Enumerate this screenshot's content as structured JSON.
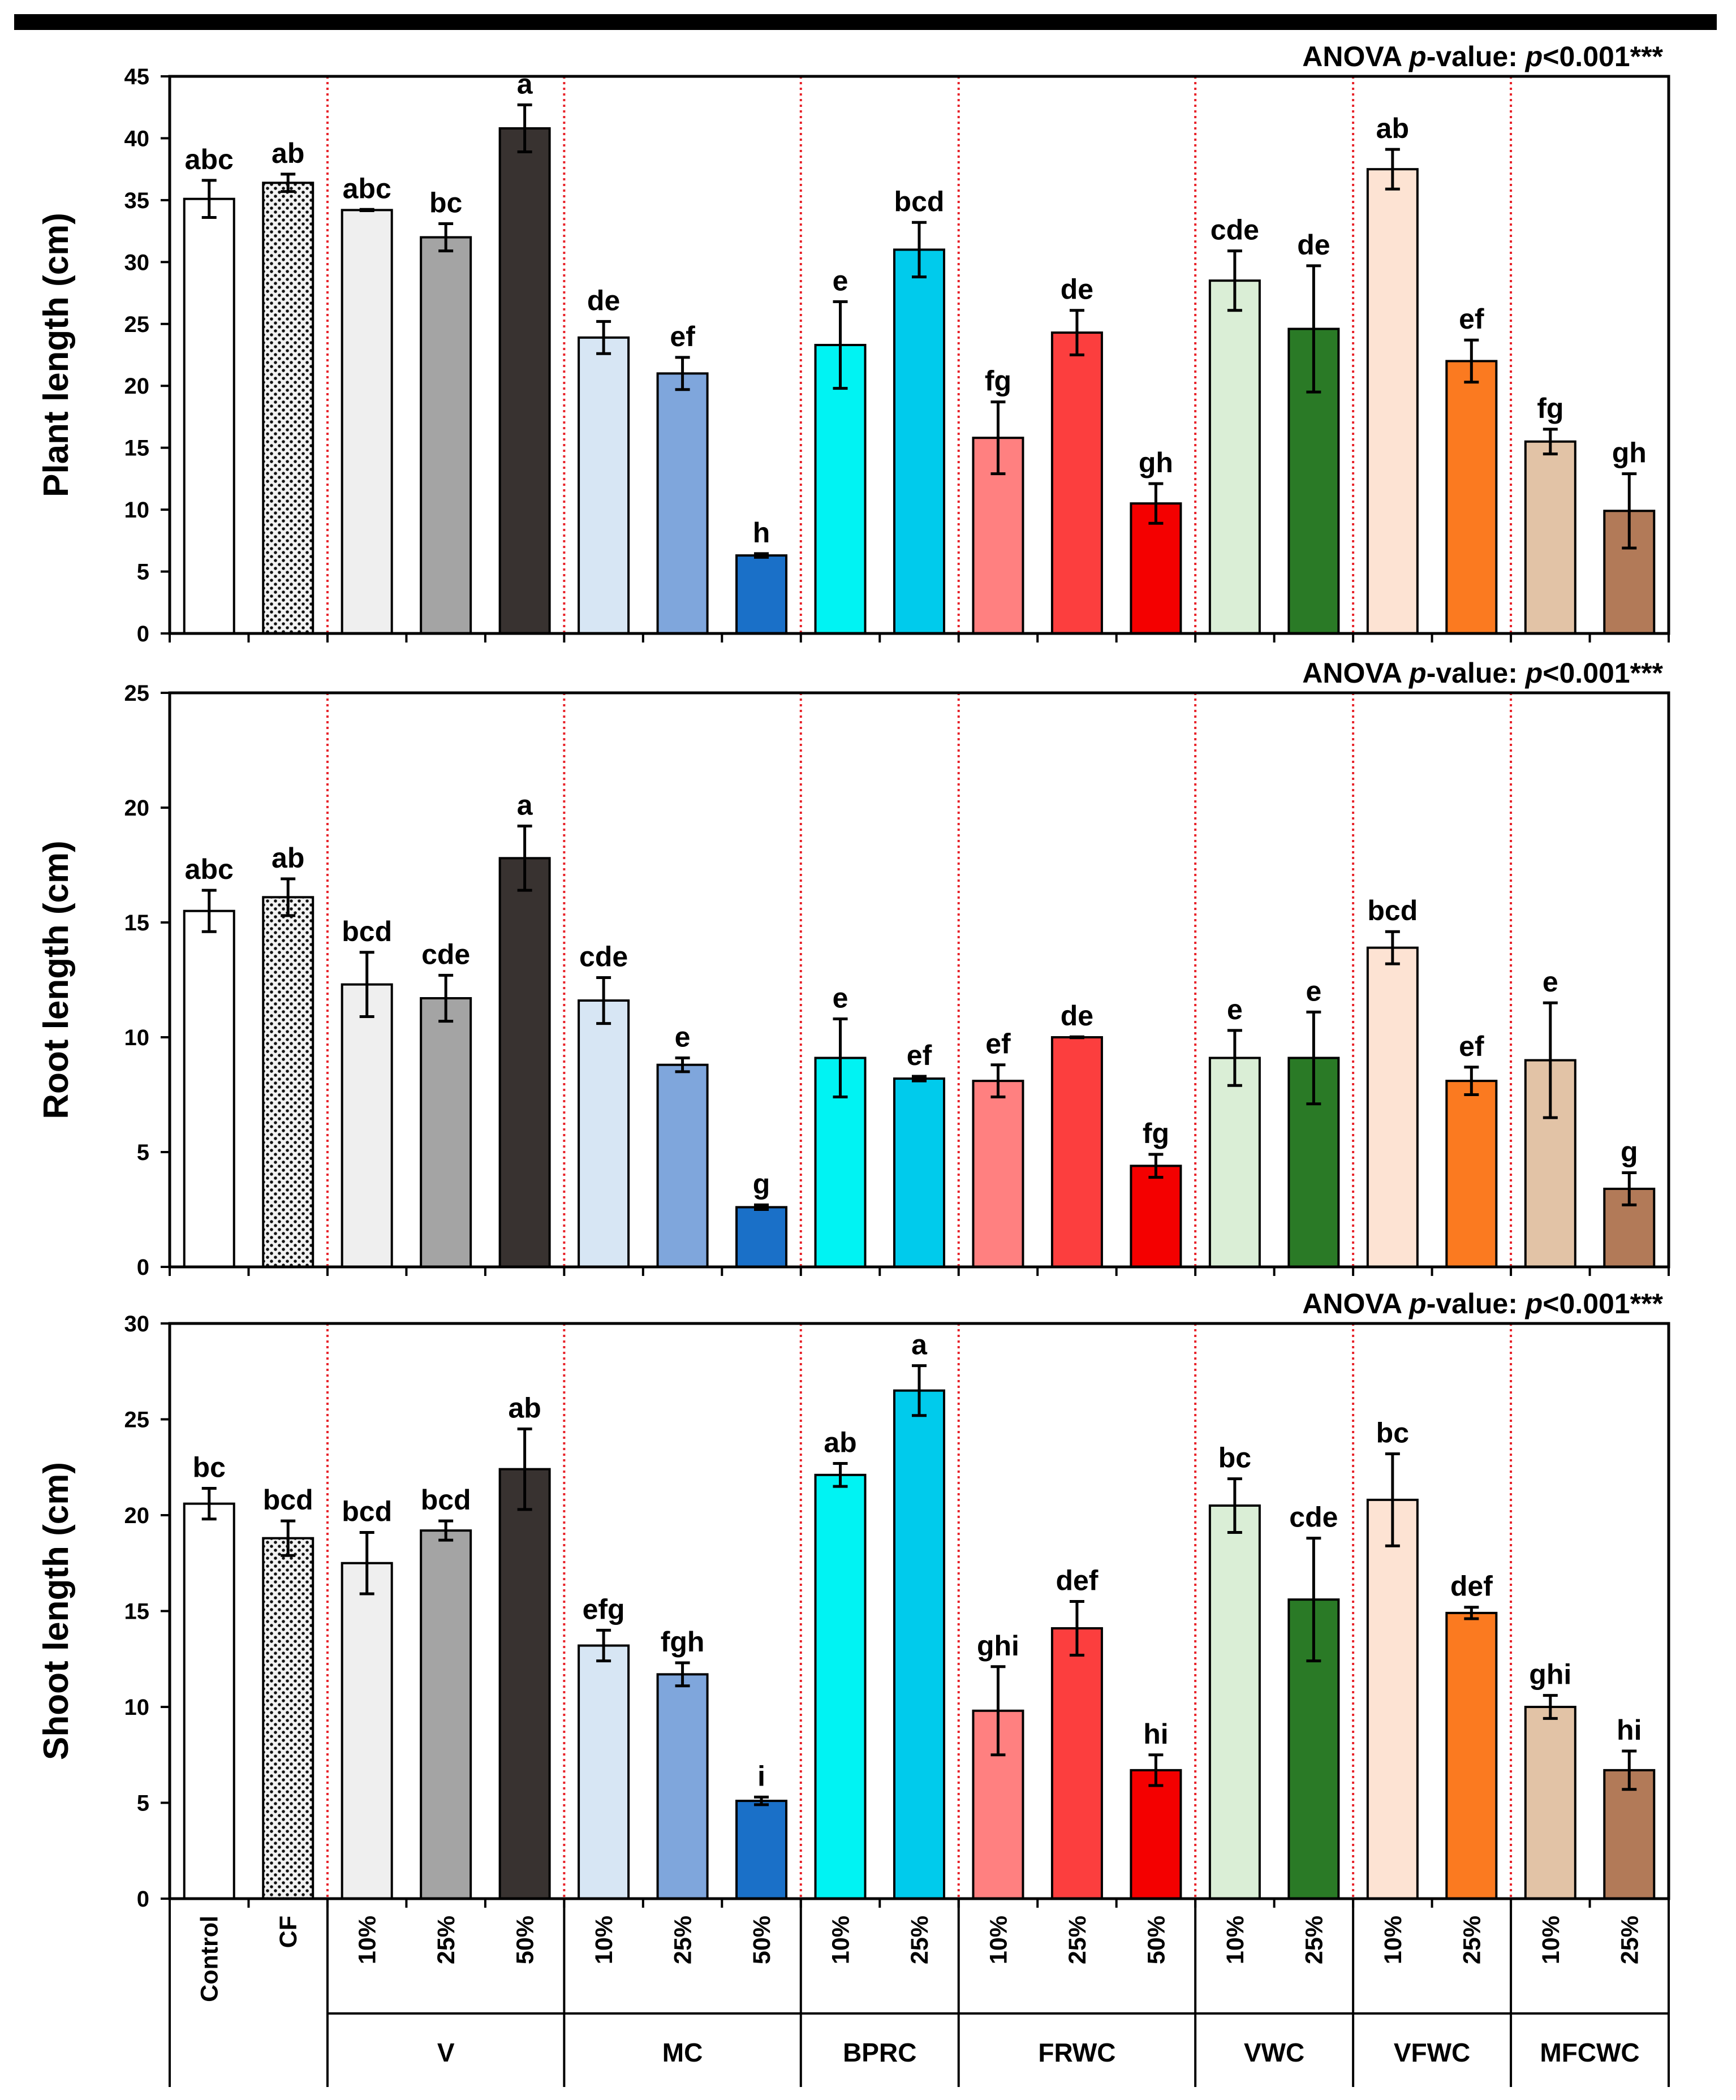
{
  "chart_data": {
    "type": "bar",
    "categories": [
      "Control",
      "CF",
      "10%",
      "25%",
      "50%",
      "10%",
      "25%",
      "50%",
      "10%",
      "25%",
      "10%",
      "25%",
      "50%",
      "10%",
      "25%",
      "10%",
      "25%",
      "10%",
      "25%"
    ],
    "groups": [
      {
        "name": "",
        "count": 2
      },
      {
        "name": "V",
        "count": 3
      },
      {
        "name": "MC",
        "count": 3
      },
      {
        "name": "BPRC",
        "count": 2
      },
      {
        "name": "FRWC",
        "count": 3
      },
      {
        "name": "VWC",
        "count": 2
      },
      {
        "name": "VFWC",
        "count": 2
      },
      {
        "name": "MFCWC",
        "count": 2
      }
    ],
    "bar_colors": [
      "#ffffff",
      "pattern:cf-dots",
      "#efefef",
      "#a4a4a4",
      "#383230",
      "#d7e6f4",
      "#7fa6dc",
      "#1a70c8",
      "#00f3f3",
      "#00cbec",
      "#ff8080",
      "#fc3e3e",
      "#f40000",
      "#daeed6",
      "#2a7a26",
      "#fde3d3",
      "#fb7a20",
      "#e2c3a6",
      "#b27a58"
    ],
    "panels": [
      {
        "ylabel": "Plant length (cm)",
        "ylim": [
          0,
          45
        ],
        "yticks": [
          0,
          5,
          10,
          15,
          20,
          25,
          30,
          35,
          40,
          45
        ],
        "anova": {
          "prefix": "ANOVA ",
          "p1": "p",
          "mid": "-value: ",
          "p2": "p",
          "suffix": "<0.001***"
        },
        "values": [
          35.1,
          36.4,
          34.2,
          32.0,
          40.8,
          23.9,
          21.0,
          6.3,
          23.3,
          31.0,
          15.8,
          24.3,
          10.5,
          28.5,
          24.6,
          37.5,
          22.0,
          15.5,
          9.9
        ],
        "errors": [
          1.5,
          0.7,
          0.05,
          1.1,
          1.9,
          1.3,
          1.3,
          0.15,
          3.5,
          2.2,
          2.9,
          1.8,
          1.6,
          2.4,
          5.1,
          1.6,
          1.7,
          1.0,
          3.0
        ],
        "letters": [
          "abc",
          "ab",
          "abc",
          "bc",
          "a",
          "de",
          "ef",
          "h",
          "e",
          "bcd",
          "fg",
          "de",
          "gh",
          "cde",
          "de",
          "ab",
          "ef",
          "fg",
          "gh"
        ]
      },
      {
        "ylabel": "Root length (cm)",
        "ylim": [
          0,
          25
        ],
        "yticks": [
          0,
          5,
          10,
          15,
          20,
          25
        ],
        "anova": {
          "prefix": "ANOVA ",
          "p1": "p",
          "mid": "-value: ",
          "p2": "p",
          "suffix": "<0.001***"
        },
        "values": [
          15.5,
          16.1,
          12.3,
          11.7,
          17.8,
          11.6,
          8.8,
          2.6,
          9.1,
          8.2,
          8.1,
          10.0,
          4.4,
          9.1,
          9.1,
          13.9,
          8.1,
          9.0,
          3.4
        ],
        "errors": [
          0.9,
          0.8,
          1.4,
          1.0,
          1.4,
          1.0,
          0.3,
          0.1,
          1.7,
          0.1,
          0.7,
          0.02,
          0.5,
          1.2,
          2.0,
          0.7,
          0.6,
          2.5,
          0.7
        ],
        "letters": [
          "abc",
          "ab",
          "bcd",
          "cde",
          "a",
          "cde",
          "e",
          "g",
          "e",
          "ef",
          "ef",
          "de",
          "fg",
          "e",
          "e",
          "bcd",
          "ef",
          "e",
          "g"
        ]
      },
      {
        "ylabel": "Shoot length (cm)",
        "ylim": [
          0,
          30
        ],
        "yticks": [
          0,
          5,
          10,
          15,
          20,
          25,
          30
        ],
        "anova": {
          "prefix": "ANOVA ",
          "p1": "p",
          "mid": "-value: ",
          "p2": "p",
          "suffix": "<0.001***"
        },
        "values": [
          20.6,
          18.8,
          17.5,
          19.2,
          22.4,
          13.2,
          11.7,
          5.1,
          22.1,
          26.5,
          9.8,
          14.1,
          6.7,
          20.5,
          15.6,
          20.8,
          14.9,
          10.0,
          6.7
        ],
        "errors": [
          0.8,
          0.9,
          1.6,
          0.5,
          2.1,
          0.8,
          0.6,
          0.2,
          0.6,
          1.3,
          2.3,
          1.4,
          0.8,
          1.4,
          3.2,
          2.4,
          0.3,
          0.6,
          1.0
        ],
        "letters": [
          "bc",
          "bcd",
          "bcd",
          "bcd",
          "ab",
          "efg",
          "fgh",
          "i",
          "ab",
          "a",
          "ghi",
          "def",
          "hi",
          "bc",
          "cde",
          "bc",
          "def",
          "ghi",
          "hi"
        ]
      }
    ]
  }
}
